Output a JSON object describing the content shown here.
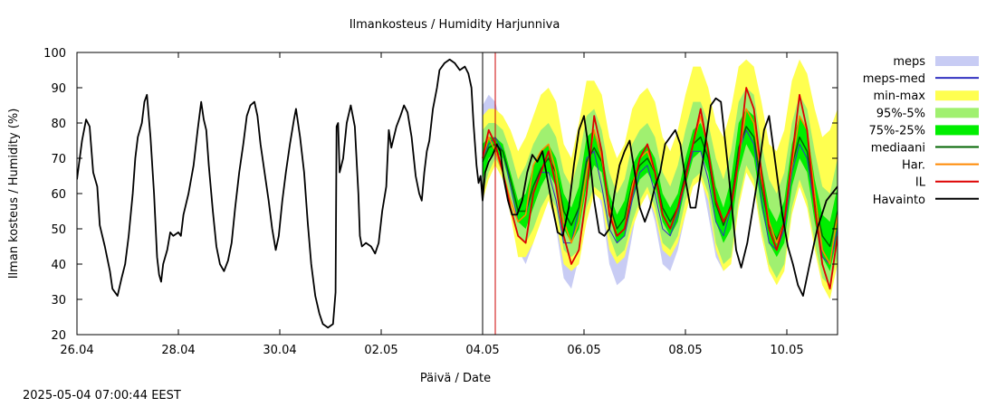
{
  "footer": {
    "timestamp": "2025-05-04 07:00:44 EEST"
  },
  "chart_data": {
    "type": "line",
    "title": "Ilmankosteus / Humidity  Harjunniva",
    "xlabel": "Päivä / Date",
    "ylabel": "Ilman kosteus / Humidity (%)",
    "ylim": [
      20,
      100
    ],
    "xlim_days": [
      0,
      15.0
    ],
    "x_unit": "days since 26.04",
    "x_ticks": [
      {
        "x": 0,
        "label": "26.04"
      },
      {
        "x": 2,
        "label": "28.04"
      },
      {
        "x": 4,
        "label": "30.04"
      },
      {
        "x": 6,
        "label": "02.05"
      },
      {
        "x": 8,
        "label": "04.05"
      },
      {
        "x": 10,
        "label": "06.05"
      },
      {
        "x": 12,
        "label": "08.05"
      },
      {
        "x": 14,
        "label": "10.05"
      }
    ],
    "y_ticks": [
      20,
      30,
      40,
      50,
      60,
      70,
      80,
      90,
      100
    ],
    "now_x": 8.25,
    "legend_position": "right",
    "colors": {
      "meps": "#c8ccf4",
      "meps_med": "#3030c0",
      "minmax": "#ffff50",
      "p95_5": "#a0f070",
      "p75_25": "#00ee00",
      "mediaani": "#006400",
      "har": "#ff8800",
      "il": "#dd0000",
      "havainto": "#000000",
      "now_line": "#cc0000"
    },
    "legend": [
      {
        "key": "meps",
        "label": "meps",
        "kind": "band"
      },
      {
        "key": "meps_med",
        "label": "meps-med",
        "kind": "line"
      },
      {
        "key": "minmax",
        "label": "min-max",
        "kind": "band"
      },
      {
        "key": "p95_5",
        "label": "95%-5%",
        "kind": "band"
      },
      {
        "key": "p75_25",
        "label": "75%-25%",
        "kind": "band"
      },
      {
        "key": "mediaani",
        "label": "mediaani",
        "kind": "line"
      },
      {
        "key": "har",
        "label": "Har.",
        "kind": "line"
      },
      {
        "key": "il",
        "label": "IL",
        "kind": "line"
      },
      {
        "key": "havainto",
        "label": "Havainto",
        "kind": "line"
      }
    ],
    "series": {
      "havainto": [
        [
          0.0,
          64
        ],
        [
          0.1,
          75
        ],
        [
          0.18,
          81
        ],
        [
          0.25,
          79
        ],
        [
          0.32,
          66
        ],
        [
          0.4,
          62
        ],
        [
          0.45,
          51
        ],
        [
          0.55,
          45
        ],
        [
          0.65,
          38
        ],
        [
          0.7,
          33
        ],
        [
          0.75,
          32
        ],
        [
          0.8,
          31
        ],
        [
          0.88,
          36
        ],
        [
          0.95,
          40
        ],
        [
          1.02,
          48
        ],
        [
          1.1,
          60
        ],
        [
          1.15,
          70
        ],
        [
          1.2,
          76
        ],
        [
          1.28,
          80
        ],
        [
          1.33,
          86
        ],
        [
          1.38,
          88
        ],
        [
          1.45,
          76
        ],
        [
          1.52,
          60
        ],
        [
          1.58,
          42
        ],
        [
          1.62,
          37
        ],
        [
          1.66,
          35
        ],
        [
          1.7,
          40
        ],
        [
          1.78,
          44
        ],
        [
          1.84,
          49
        ],
        [
          1.9,
          48
        ],
        [
          2.0,
          49
        ],
        [
          2.05,
          48
        ],
        [
          2.1,
          54
        ],
        [
          2.2,
          60
        ],
        [
          2.3,
          68
        ],
        [
          2.38,
          78
        ],
        [
          2.45,
          86
        ],
        [
          2.5,
          81
        ],
        [
          2.55,
          78
        ],
        [
          2.6,
          68
        ],
        [
          2.68,
          55
        ],
        [
          2.75,
          45
        ],
        [
          2.82,
          40
        ],
        [
          2.9,
          38
        ],
        [
          2.98,
          41
        ],
        [
          3.05,
          46
        ],
        [
          3.12,
          56
        ],
        [
          3.2,
          66
        ],
        [
          3.28,
          74
        ],
        [
          3.35,
          82
        ],
        [
          3.42,
          85
        ],
        [
          3.5,
          86
        ],
        [
          3.56,
          82
        ],
        [
          3.62,
          74
        ],
        [
          3.7,
          66
        ],
        [
          3.78,
          58
        ],
        [
          3.85,
          50
        ],
        [
          3.92,
          44
        ],
        [
          3.98,
          48
        ],
        [
          4.05,
          58
        ],
        [
          4.12,
          66
        ],
        [
          4.2,
          74
        ],
        [
          4.28,
          81
        ],
        [
          4.32,
          84
        ],
        [
          4.4,
          76
        ],
        [
          4.48,
          66
        ],
        [
          4.55,
          52
        ],
        [
          4.62,
          40
        ],
        [
          4.7,
          31
        ],
        [
          4.78,
          26
        ],
        [
          4.85,
          23
        ],
        [
          4.95,
          22
        ],
        [
          5.05,
          23
        ],
        [
          5.1,
          32
        ],
        [
          5.12,
          79
        ],
        [
          5.15,
          80
        ],
        [
          5.18,
          66
        ],
        [
          5.25,
          70
        ],
        [
          5.32,
          80
        ],
        [
          5.4,
          85
        ],
        [
          5.48,
          79
        ],
        [
          5.55,
          60
        ],
        [
          5.58,
          48
        ],
        [
          5.62,
          45
        ],
        [
          5.7,
          46
        ],
        [
          5.8,
          45
        ],
        [
          5.88,
          43
        ],
        [
          5.95,
          46
        ],
        [
          6.02,
          55
        ],
        [
          6.1,
          62
        ],
        [
          6.15,
          78
        ],
        [
          6.2,
          73
        ],
        [
          6.25,
          76
        ],
        [
          6.3,
          79
        ],
        [
          6.38,
          82
        ],
        [
          6.45,
          85
        ],
        [
          6.52,
          83
        ],
        [
          6.6,
          76
        ],
        [
          6.68,
          65
        ],
        [
          6.75,
          60
        ],
        [
          6.8,
          58
        ],
        [
          6.85,
          66
        ],
        [
          6.9,
          72
        ],
        [
          6.95,
          75
        ],
        [
          7.02,
          84
        ],
        [
          7.1,
          90
        ],
        [
          7.15,
          95
        ],
        [
          7.25,
          97
        ],
        [
          7.35,
          98
        ],
        [
          7.45,
          97
        ],
        [
          7.55,
          95
        ],
        [
          7.65,
          96
        ],
        [
          7.72,
          94
        ],
        [
          7.78,
          90
        ],
        [
          7.82,
          80
        ],
        [
          7.88,
          68
        ],
        [
          7.92,
          63
        ],
        [
          7.96,
          65
        ],
        [
          8.0,
          58
        ],
        [
          8.05,
          66
        ],
        [
          8.12,
          69
        ],
        [
          8.2,
          71
        ],
        [
          8.28,
          74
        ],
        [
          8.35,
          72
        ],
        [
          8.42,
          64
        ],
        [
          8.5,
          58
        ],
        [
          8.58,
          54
        ],
        [
          8.68,
          54
        ],
        [
          8.78,
          58
        ],
        [
          8.88,
          66
        ],
        [
          8.98,
          71
        ],
        [
          9.08,
          69
        ],
        [
          9.18,
          72
        ],
        [
          9.28,
          64
        ],
        [
          9.38,
          56
        ],
        [
          9.48,
          49
        ],
        [
          9.58,
          48
        ],
        [
          9.7,
          56
        ],
        [
          9.8,
          68
        ],
        [
          9.9,
          78
        ],
        [
          10.0,
          82
        ],
        [
          10.1,
          72
        ],
        [
          10.2,
          58
        ],
        [
          10.3,
          49
        ],
        [
          10.4,
          48
        ],
        [
          10.5,
          50
        ],
        [
          10.6,
          60
        ],
        [
          10.7,
          68
        ],
        [
          10.8,
          72
        ],
        [
          10.9,
          75
        ],
        [
          11.0,
          66
        ],
        [
          11.1,
          56
        ],
        [
          11.2,
          52
        ],
        [
          11.3,
          56
        ],
        [
          11.4,
          62
        ],
        [
          11.5,
          66
        ],
        [
          11.6,
          74
        ],
        [
          11.7,
          76
        ],
        [
          11.8,
          78
        ],
        [
          11.9,
          74
        ],
        [
          12.0,
          64
        ],
        [
          12.1,
          56
        ],
        [
          12.2,
          56
        ],
        [
          12.35,
          70
        ],
        [
          12.5,
          85
        ],
        [
          12.6,
          87
        ],
        [
          12.7,
          86
        ],
        [
          12.85,
          66
        ],
        [
          13.0,
          44
        ],
        [
          13.1,
          39
        ],
        [
          13.22,
          46
        ],
        [
          13.4,
          62
        ],
        [
          13.55,
          78
        ],
        [
          13.65,
          82
        ],
        [
          13.78,
          68
        ],
        [
          13.9,
          55
        ],
        [
          14.02,
          45
        ],
        [
          14.12,
          40
        ],
        [
          14.22,
          34
        ],
        [
          14.32,
          31
        ],
        [
          14.45,
          40
        ],
        [
          14.6,
          50
        ],
        [
          14.78,
          58
        ],
        [
          15.0,
          62
        ]
      ],
      "havainto_obs_end": 7.98,
      "fc_x": [
        8.0,
        8.12,
        8.25,
        8.4,
        8.55,
        8.7,
        8.85,
        9.0,
        9.15,
        9.3,
        9.45,
        9.6,
        9.75,
        9.9,
        10.05,
        10.2,
        10.35,
        10.5,
        10.65,
        10.8,
        10.95,
        11.1,
        11.25,
        11.4,
        11.55,
        11.7,
        11.85,
        12.0,
        12.15,
        12.3,
        12.45,
        12.6,
        12.75,
        12.9,
        13.05,
        13.2,
        13.35,
        13.5,
        13.65,
        13.8,
        13.95,
        14.1,
        14.25,
        14.4,
        14.55,
        14.7,
        14.85,
        15.0
      ],
      "meps_upper": [
        85,
        88,
        86,
        78,
        70,
        66,
        70,
        74,
        76,
        74,
        68,
        56,
        58,
        70,
        82,
        80,
        70,
        58,
        52,
        56,
        66,
        74,
        76,
        70,
        58,
        54,
        62,
        72,
        80,
        80,
        70,
        58,
        56,
        70,
        84,
        88,
        84,
        68,
        56,
        52,
        60,
        76,
        84,
        80,
        66,
        52,
        50,
        62
      ],
      "meps_lower": [
        62,
        72,
        74,
        66,
        56,
        44,
        40,
        46,
        56,
        60,
        50,
        36,
        33,
        42,
        56,
        64,
        56,
        40,
        34,
        36,
        48,
        60,
        60,
        52,
        40,
        38,
        44,
        54,
        62,
        66,
        54,
        42,
        38,
        44,
        60,
        66,
        62,
        48,
        38,
        36,
        40,
        56,
        62,
        60,
        44,
        34,
        32,
        40
      ],
      "meps_med": [
        70,
        74,
        76,
        72,
        62,
        52,
        54,
        62,
        66,
        66,
        58,
        46,
        46,
        56,
        70,
        72,
        62,
        50,
        46,
        48,
        58,
        66,
        68,
        60,
        50,
        48,
        54,
        64,
        72,
        72,
        64,
        52,
        48,
        56,
        72,
        78,
        74,
        58,
        46,
        44,
        50,
        66,
        74,
        70,
        56,
        42,
        40,
        50
      ],
      "minmax_upper": [
        82,
        84,
        84,
        82,
        78,
        72,
        76,
        82,
        88,
        90,
        86,
        74,
        70,
        80,
        92,
        92,
        88,
        76,
        70,
        74,
        84,
        88,
        90,
        86,
        76,
        72,
        78,
        88,
        96,
        96,
        90,
        80,
        76,
        84,
        96,
        98,
        96,
        86,
        74,
        72,
        78,
        92,
        98,
        94,
        84,
        76,
        78,
        84
      ],
      "minmax_lower": [
        58,
        64,
        68,
        64,
        54,
        42,
        42,
        46,
        52,
        58,
        52,
        40,
        38,
        40,
        52,
        60,
        58,
        44,
        40,
        42,
        50,
        56,
        60,
        54,
        44,
        42,
        46,
        54,
        62,
        64,
        58,
        44,
        38,
        40,
        56,
        66,
        62,
        48,
        38,
        34,
        38,
        54,
        62,
        56,
        44,
        34,
        30,
        40
      ],
      "p95_upper": [
        78,
        80,
        80,
        78,
        72,
        64,
        68,
        74,
        78,
        80,
        76,
        66,
        62,
        70,
        82,
        84,
        78,
        66,
        60,
        64,
        74,
        78,
        80,
        76,
        66,
        62,
        68,
        78,
        86,
        86,
        80,
        70,
        64,
        72,
        86,
        90,
        88,
        74,
        64,
        60,
        66,
        80,
        88,
        84,
        72,
        62,
        60,
        70
      ],
      "p95_lower": [
        60,
        66,
        70,
        66,
        58,
        48,
        46,
        50,
        56,
        60,
        56,
        44,
        42,
        44,
        56,
        62,
        60,
        48,
        42,
        44,
        52,
        58,
        62,
        56,
        46,
        44,
        48,
        58,
        64,
        66,
        60,
        46,
        40,
        42,
        58,
        68,
        64,
        50,
        40,
        36,
        40,
        56,
        64,
        58,
        46,
        36,
        34,
        42
      ],
      "p75_upper": [
        74,
        76,
        76,
        74,
        66,
        58,
        60,
        68,
        72,
        74,
        70,
        60,
        56,
        62,
        76,
        78,
        72,
        60,
        54,
        58,
        68,
        72,
        74,
        70,
        60,
        56,
        60,
        70,
        78,
        80,
        74,
        62,
        56,
        64,
        80,
        84,
        82,
        68,
        56,
        52,
        58,
        74,
        82,
        78,
        64,
        54,
        52,
        62
      ],
      "p75_lower": [
        64,
        70,
        72,
        70,
        62,
        52,
        50,
        56,
        62,
        66,
        62,
        50,
        46,
        50,
        62,
        68,
        66,
        54,
        46,
        48,
        58,
        64,
        66,
        62,
        52,
        48,
        52,
        62,
        70,
        72,
        66,
        52,
        46,
        50,
        66,
        74,
        70,
        56,
        46,
        42,
        46,
        62,
        70,
        66,
        52,
        42,
        38,
        48
      ],
      "mediaani": [
        69,
        73,
        74,
        72,
        64,
        55,
        55,
        62,
        67,
        70,
        66,
        55,
        51,
        56,
        69,
        73,
        69,
        57,
        50,
        53,
        63,
        68,
        70,
        66,
        56,
        52,
        56,
        66,
        74,
        76,
        70,
        57,
        51,
        57,
        73,
        79,
        76,
        62,
        51,
        47,
        52,
        68,
        76,
        72,
        58,
        48,
        45,
        55
      ],
      "har": [
        70,
        76,
        72,
        66,
        58,
        52,
        54,
        68,
        72,
        74,
        66,
        52,
        46,
        52,
        66,
        78,
        70,
        56,
        48,
        50,
        62,
        70,
        72,
        66,
        54,
        50,
        56,
        64,
        74,
        82,
        72,
        58,
        52,
        56,
        70,
        84,
        80,
        64,
        52,
        46,
        52,
        68,
        82,
        78,
        60,
        44,
        40,
        54
      ],
      "il": [
        70,
        78,
        74,
        66,
        56,
        48,
        46,
        60,
        66,
        72,
        62,
        48,
        40,
        44,
        60,
        82,
        72,
        54,
        48,
        50,
        60,
        70,
        74,
        66,
        54,
        50,
        56,
        64,
        74,
        84,
        72,
        58,
        52,
        56,
        70,
        90,
        84,
        66,
        50,
        44,
        52,
        70,
        88,
        78,
        56,
        40,
        33,
        48
      ]
    }
  }
}
